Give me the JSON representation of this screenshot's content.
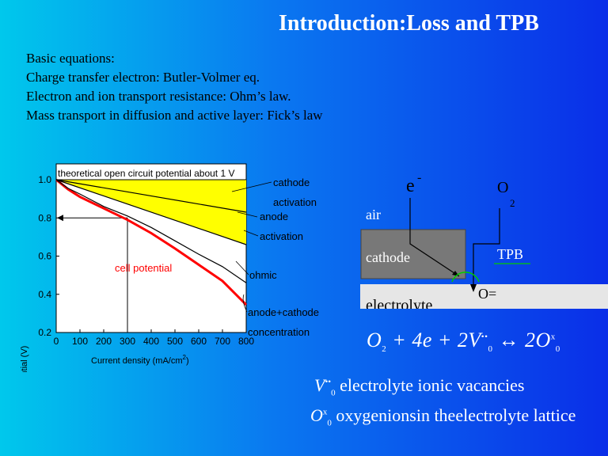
{
  "title": "Introduction:Loss and TPB",
  "intro_lines": [
    "Basic equations:",
    "Charge transfer electron: Butler-Volmer eq.",
    "Electron and ion transport resistance: Ohm’s law.",
    "Mass transport in diffusion and  active layer: Fick’s law"
  ],
  "chart_data": {
    "type": "line",
    "xlabel": "Current density (mA/cm2)",
    "ylabel": "Cell potential (V)",
    "xlim": [
      0,
      800
    ],
    "ylim": [
      0.2,
      1.0
    ],
    "x_ticks": [
      0,
      100,
      200,
      300,
      400,
      500,
      600,
      700,
      800
    ],
    "y_ticks": [
      0.2,
      0.4,
      0.6,
      0.8,
      1.0
    ],
    "series": [
      {
        "name": "cell potential",
        "color": "#ff0000",
        "x": [
          0,
          50,
          100,
          200,
          300,
          400,
          500,
          600,
          700,
          800
        ],
        "y": [
          1.0,
          0.95,
          0.91,
          0.85,
          0.79,
          0.72,
          0.64,
          0.555,
          0.47,
          0.345
        ]
      },
      {
        "name": "ohmic",
        "color": "#000000",
        "x": [
          0,
          50,
          100,
          200,
          300,
          400,
          500,
          600,
          700,
          800
        ],
        "y": [
          1.0,
          0.955,
          0.925,
          0.86,
          0.81,
          0.75,
          0.68,
          0.61,
          0.545,
          0.46
        ]
      },
      {
        "name": "anode activation",
        "color": "#000000",
        "x": [
          0,
          800
        ],
        "y": [
          1.0,
          0.66
        ]
      },
      {
        "name": "cathode activation",
        "color": "#000000",
        "x": [
          0,
          800
        ],
        "y": [
          1.0,
          0.83
        ]
      }
    ],
    "fills": [
      {
        "between": [
          "cathode activation",
          "anode activation"
        ],
        "color": "#ffff00"
      }
    ],
    "reference_lines": [
      {
        "type": "horizontal",
        "y": 1.0,
        "label": "theoretical open circuit potential about 1 V"
      },
      {
        "type": "point",
        "x": 300,
        "y": 0.8,
        "arrow": "to y-axis"
      }
    ],
    "annotations": [
      "cathode",
      "activation",
      "anode",
      "activation",
      "cell potential",
      "ohmic",
      "anode+cathode",
      "concentration"
    ]
  },
  "tpb": {
    "electron": "e",
    "electron_sup": "-",
    "oxygen": "O",
    "oxygen_sub": "2",
    "air": "air",
    "cathode": "cathode",
    "tpb_label": "TPB",
    "electrolyte": "electrolyte",
    "oxide_ion": "O=",
    "colors": {
      "cathode": "#787878",
      "electrolyte": "#e6e6e6",
      "tpb": "#00cc00"
    }
  },
  "equation": {
    "t1": "O",
    "s1": "2",
    "t2": " + 4e + 2V",
    "s2": "0",
    "sup2": "••",
    "t3": " ↔ 2O",
    "s3": "0",
    "sup3": "x"
  },
  "legend1": {
    "sym": "V",
    "sub": "0",
    "sup": "••",
    "text": " electrolyte ionic vacancies"
  },
  "legend2": {
    "sym": "O",
    "sub": "0",
    "sup": "x",
    "text": " oxygenionsin theelectrolyte lattice"
  }
}
